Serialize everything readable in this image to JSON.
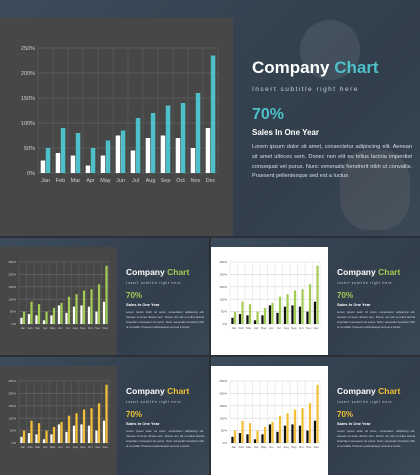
{
  "chart_data": {
    "type": "bar",
    "categories": [
      "Jan",
      "Feb",
      "Mar",
      "Apr",
      "May",
      "Jun",
      "Jul",
      "Aug",
      "Sep",
      "Oct",
      "Nov",
      "Dec"
    ],
    "series": [
      {
        "values": [
          25,
          40,
          35,
          15,
          35,
          75,
          45,
          70,
          75,
          70,
          50,
          90
        ]
      },
      {
        "values": [
          50,
          90,
          80,
          50,
          65,
          85,
          110,
          120,
          135,
          140,
          160,
          235
        ]
      }
    ],
    "ylim": [
      0,
      250
    ],
    "yticks": [
      "0%",
      "50%",
      "100%",
      "150%",
      "200%",
      "250%"
    ],
    "xlabel": "",
    "ylabel": ""
  },
  "text": {
    "title_word": "Company",
    "title_accent": "Chart",
    "subtitle": "Insert subtitle right here",
    "percent": "70%",
    "heading": "Sales In One Year",
    "body": "Lorem ipsum dolor sit amet, consectetur adipiscing elit. Aenean sit amet ultrices sem. Donec non elit eu tellus lacinia imperdiet consequat vel purus. Nunc venenatis hendrerit nibh ut convallis. Praesent pellentesque sed est a luctus"
  },
  "colors": {
    "teal": "#4ec0c9",
    "green": "#a3cc55",
    "yellow": "#f2c036",
    "black": "#111111",
    "white": "#ffffff"
  }
}
